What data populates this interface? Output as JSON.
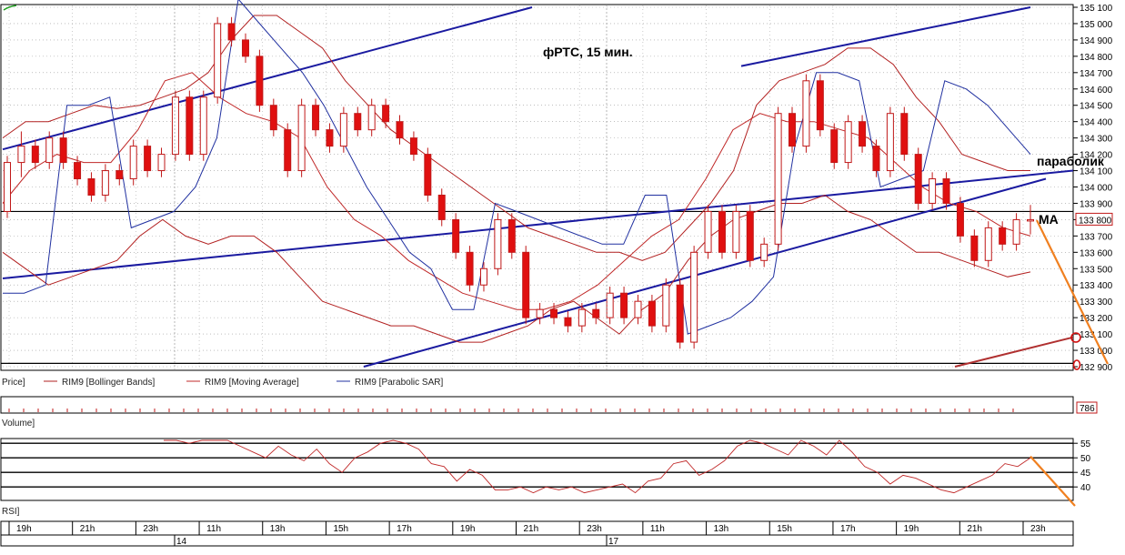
{
  "chart_data": {
    "type": "candlestick",
    "title": "фРТС,   15 мин.",
    "instrument": "RIM9",
    "price_axis": {
      "ylim": [
        132890,
        135130
      ],
      "ticks": [
        135100,
        135000,
        134900,
        134800,
        134700,
        134600,
        134500,
        134400,
        134300,
        134200,
        134100,
        134000,
        133900,
        133800,
        133700,
        133600,
        133500,
        133400,
        133300,
        133200,
        133100,
        133000,
        132900
      ],
      "tick_labels": [
        "135 100",
        "135 000",
        "134 900",
        "134 800",
        "134 700",
        "134 600",
        "134 500",
        "134 400",
        "134 300",
        "134 200",
        "134 100",
        "134 000",
        "133 900",
        "133 800",
        "133 700",
        "133 600",
        "133 500",
        "133 400",
        "133 300",
        "133 200",
        "133 100",
        "133 000",
        "132 900"
      ],
      "last_price": 133800,
      "last_price_label": "133 800"
    },
    "time_axis": {
      "hour_labels": [
        "19h",
        "21h",
        "23h",
        "11h",
        "13h",
        "15h",
        "17h",
        "19h",
        "21h",
        "23h",
        "11h",
        "13h",
        "15h",
        "17h",
        "19h",
        "21h",
        "23h"
      ],
      "day_labels": [
        "14",
        "17"
      ]
    },
    "legend": {
      "price_label": "Price]",
      "series": [
        "RIM9 [Bollinger Bands]",
        "RIM9 [Moving Average]",
        "RIM9 [Parabolic SAR]"
      ]
    },
    "volume": {
      "label": "Volume]",
      "last_value_label": "786"
    },
    "rsi": {
      "label": "RSI]",
      "ylim": [
        36,
        56
      ],
      "ticks": [
        55,
        50,
        45,
        40
      ],
      "levels": [
        55,
        50,
        45,
        40
      ],
      "path_values": [
        56,
        56,
        55,
        56,
        56,
        56,
        54,
        52,
        50,
        54,
        51,
        49,
        53,
        48,
        45,
        50,
        52,
        55,
        56,
        55,
        53,
        48,
        47,
        42,
        46,
        44,
        39,
        39,
        40,
        38,
        40,
        39,
        40,
        38,
        39,
        40,
        41,
        38,
        42,
        43,
        48,
        49,
        44,
        46,
        49,
        54,
        56,
        55,
        53,
        51,
        56,
        54,
        51,
        56,
        52,
        47,
        45,
        41,
        44,
        43,
        41,
        39,
        38,
        40,
        42,
        44,
        48,
        47,
        50
      ]
    },
    "series": {
      "candles": [
        [
          133850,
          134150,
          133850,
          134150
        ],
        [
          134150,
          134300,
          134100,
          134250
        ],
        [
          134250,
          134250,
          134150,
          134150
        ],
        [
          134150,
          134300,
          134150,
          134300
        ],
        [
          134300,
          134300,
          134150,
          134150
        ],
        [
          134150,
          134150,
          134050,
          134050
        ],
        [
          134050,
          134050,
          133950,
          133950
        ],
        [
          133950,
          134100,
          133950,
          134100
        ],
        [
          134100,
          134100,
          134050,
          134050
        ],
        [
          134050,
          134250,
          134050,
          134250
        ],
        [
          134250,
          134250,
          134100,
          134100
        ],
        [
          134100,
          134200,
          134100,
          134200
        ],
        [
          134200,
          134550,
          134200,
          134550
        ],
        [
          134550,
          134550,
          134200,
          134200
        ],
        [
          134200,
          134550,
          134200,
          134550
        ],
        [
          134550,
          135000,
          134550,
          135000
        ],
        [
          135000,
          135000,
          134900,
          134900
        ],
        [
          134900,
          134900,
          134800,
          134800
        ],
        [
          134800,
          134800,
          134500,
          134500
        ],
        [
          134500,
          134500,
          134350,
          134350
        ],
        [
          134350,
          134350,
          134100,
          134100
        ],
        [
          134100,
          134500,
          134100,
          134500
        ],
        [
          134500,
          134500,
          134350,
          134350
        ],
        [
          134350,
          134350,
          134250,
          134250
        ],
        [
          134250,
          134450,
          134250,
          134450
        ],
        [
          134450,
          134450,
          134350,
          134350
        ],
        [
          134350,
          134500,
          134350,
          134500
        ],
        [
          134500,
          134500,
          134400,
          134400
        ],
        [
          134400,
          134400,
          134300,
          134300
        ],
        [
          134300,
          134300,
          134200,
          134200
        ],
        [
          134200,
          134200,
          133950,
          133950
        ],
        [
          133950,
          133950,
          133800,
          133800
        ],
        [
          133800,
          133800,
          133600,
          133600
        ],
        [
          133600,
          133600,
          133400,
          133400
        ],
        [
          133400,
          133500,
          133400,
          133500
        ],
        [
          133500,
          133800,
          133500,
          133800
        ],
        [
          133800,
          133800,
          133600,
          133600
        ],
        [
          133600,
          133600,
          133200,
          133200
        ],
        [
          133200,
          133250,
          133200,
          133250
        ],
        [
          133250,
          133250,
          133200,
          133200
        ],
        [
          133200,
          133200,
          133150,
          133150
        ],
        [
          133150,
          133250,
          133150,
          133250
        ],
        [
          133250,
          133250,
          133200,
          133200
        ],
        [
          133200,
          133350,
          133200,
          133350
        ],
        [
          133350,
          133350,
          133200,
          133200
        ],
        [
          133200,
          133300,
          133200,
          133300
        ],
        [
          133300,
          133300,
          133150,
          133150
        ],
        [
          133150,
          133400,
          133150,
          133400
        ],
        [
          133400,
          133400,
          133050,
          133050
        ],
        [
          133050,
          133600,
          133050,
          133600
        ],
        [
          133600,
          133850,
          133600,
          133850
        ],
        [
          133850,
          133850,
          133600,
          133600
        ],
        [
          133600,
          133850,
          133600,
          133850
        ],
        [
          133850,
          133850,
          133550,
          133550
        ],
        [
          133550,
          133650,
          133550,
          133650
        ],
        [
          133650,
          134450,
          133650,
          134450
        ],
        [
          134450,
          134450,
          134250,
          134250
        ],
        [
          134250,
          134650,
          134250,
          134650
        ],
        [
          134650,
          134650,
          134350,
          134350
        ],
        [
          134350,
          134350,
          134150,
          134150
        ],
        [
          134150,
          134400,
          134150,
          134400
        ],
        [
          134400,
          134400,
          134250,
          134250
        ],
        [
          134250,
          134250,
          134100,
          134100
        ],
        [
          134100,
          134450,
          134100,
          134450
        ],
        [
          134450,
          134450,
          134200,
          134200
        ],
        [
          134200,
          134200,
          133900,
          133900
        ],
        [
          133900,
          134050,
          133900,
          134050
        ],
        [
          134050,
          134050,
          133900,
          133900
        ],
        [
          133900,
          133900,
          133700,
          133700
        ],
        [
          133700,
          133700,
          133550,
          133550
        ],
        [
          133550,
          133750,
          133550,
          133750
        ],
        [
          133750,
          133750,
          133650,
          133650
        ],
        [
          133650,
          133800,
          133650,
          133800
        ],
        [
          133800,
          133850,
          133750,
          133800
        ]
      ],
      "bollinger_upper": [
        134300,
        134400,
        134400,
        134450,
        134500,
        134480,
        134500,
        134550,
        134600,
        134700,
        134900,
        135050,
        135050,
        134950,
        134850,
        134650,
        134500,
        134350,
        134250,
        134150,
        134050,
        133950,
        133850,
        133750,
        133700,
        133650,
        133600,
        133600,
        133550,
        133600,
        133750,
        133900,
        134100,
        134500,
        134650,
        134700,
        134750,
        134850,
        134850,
        134750,
        134550,
        134400,
        134200,
        134150,
        134100,
        134100
      ],
      "bollinger_lower": [
        133600,
        133500,
        133400,
        133450,
        133500,
        133550,
        133700,
        133800,
        133700,
        133650,
        133700,
        133700,
        133600,
        133450,
        133300,
        133250,
        133200,
        133150,
        133150,
        133100,
        133050,
        133050,
        133100,
        133150,
        133250,
        133300,
        133200,
        133100,
        133250,
        133350,
        133550,
        133700,
        133800,
        133850,
        133900,
        133900,
        133950,
        133850,
        133800,
        133700,
        133600,
        133600,
        133550,
        133500,
        133450,
        133480
      ],
      "moving_average": [
        133900,
        134100,
        134200,
        134150,
        134150,
        134350,
        134650,
        134700,
        134550,
        134450,
        134400,
        134300,
        134000,
        133800,
        133700,
        133550,
        133450,
        133350,
        133300,
        133250,
        133250,
        133300,
        133400,
        133550,
        133700,
        133800,
        134050,
        134350,
        134450,
        134400,
        134400,
        134350,
        134300,
        134150,
        134000,
        133900,
        133850,
        133750,
        133700
      ],
      "parabolic_sar": [
        133350,
        133350,
        133400,
        134500,
        134500,
        134550,
        133750,
        133800,
        133850,
        134000,
        134300,
        135150,
        135000,
        134850,
        134700,
        134500,
        134250,
        134000,
        133800,
        133600,
        133500,
        133250,
        133250,
        133900,
        133850,
        133800,
        133750,
        133700,
        133650,
        133650,
        133950,
        133950,
        133100,
        133150,
        133200,
        133300,
        133450,
        134250,
        134700,
        134700,
        134650,
        134000,
        134050,
        134100,
        134650,
        134600,
        134500,
        134350,
        134200
      ]
    },
    "annotations": {
      "sar_label": "параболик",
      "ma_label": "MA"
    }
  }
}
